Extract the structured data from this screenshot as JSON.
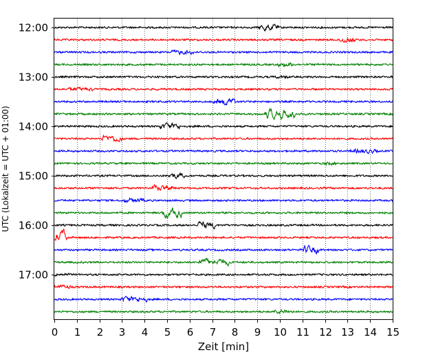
{
  "chart_data": {
    "type": "line",
    "title": "",
    "xlabel": "Zeit  [min]",
    "ylabel": "UTC (Lokalzeit = UTC + 01:00)",
    "xlim": [
      0,
      15
    ],
    "x_ticks": [
      0,
      1,
      2,
      3,
      4,
      5,
      6,
      7,
      8,
      9,
      10,
      11,
      12,
      13,
      14,
      15
    ],
    "x_tick_labels": [
      "0",
      "1",
      "2",
      "3",
      "4",
      "5",
      "6",
      "7",
      "8",
      "9",
      "10",
      "11",
      "12",
      "13",
      "14",
      "15"
    ],
    "y_tick_labels": [
      "12:00",
      "13:00",
      "14:00",
      "15:00",
      "16:00",
      "17:00"
    ],
    "y_tick_trace_index": [
      0,
      4,
      8,
      12,
      16,
      20
    ],
    "trace_start_times_utc": [
      "12:00",
      "12:15",
      "12:30",
      "12:45",
      "13:00",
      "13:15",
      "13:30",
      "13:45",
      "14:00",
      "14:15",
      "14:30",
      "14:45",
      "15:00",
      "15:15",
      "15:30",
      "15:45",
      "16:00",
      "16:15",
      "16:30",
      "16:45",
      "17:00",
      "17:15",
      "17:30",
      "17:45"
    ],
    "trace_duration_min": 15,
    "color_cycle": [
      "#000000",
      "#ff0000",
      "#0000ff",
      "#008000"
    ],
    "grid": "vertical dotted lines at each minute",
    "legend": "none"
  }
}
